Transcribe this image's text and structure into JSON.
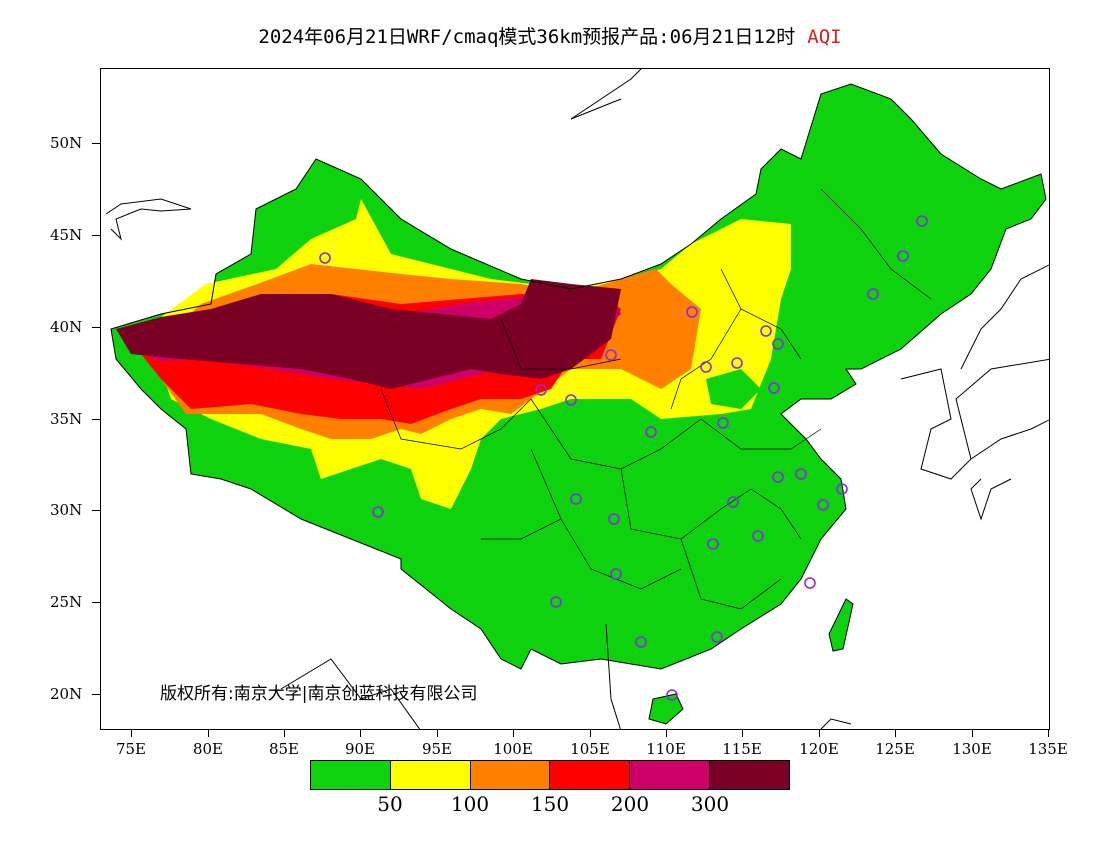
{
  "title": {
    "main": "2024年06月21日WRF/cmaq模式36km预报产品:06月21日12时",
    "variable": "AQI"
  },
  "axes": {
    "latitude_ticks": [
      "50N",
      "45N",
      "40N",
      "35N",
      "30N",
      "25N",
      "20N"
    ],
    "longitude_ticks": [
      "75E",
      "80E",
      "85E",
      "90E",
      "95E",
      "100E",
      "105E",
      "110E",
      "115E",
      "120E",
      "125E",
      "130E",
      "135E"
    ]
  },
  "copyright": "版权所有:南京大学|南京创蓝科技有限公司",
  "legend": {
    "colors": [
      "#0fd20f",
      "#ffff00",
      "#ff8000",
      "#ff0000",
      "#cc0066",
      "#7a0026"
    ],
    "labels": [
      "50",
      "100",
      "150",
      "200",
      "300"
    ]
  },
  "colors": {
    "good": "#0fd20f",
    "moderate": "#ffff00",
    "sensitive": "#ff8000",
    "unhealthy": "#ff0000",
    "very_unhealthy": "#cc0066",
    "hazardous": "#7a0026",
    "station_marker": "#8a2be2"
  }
}
